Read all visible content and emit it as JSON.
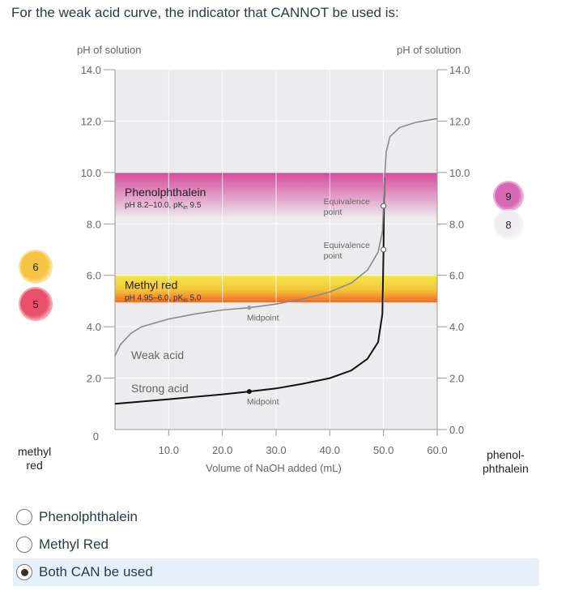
{
  "question": "For the weak acid curve, the indicator that CANNOT be used is:",
  "side_labels": {
    "left": [
      "methyl",
      "red"
    ],
    "right": [
      "phenol-",
      "phthalein"
    ]
  },
  "beakers": {
    "left": [
      {
        "label": "6",
        "color": "#f6c443"
      },
      {
        "label": "5",
        "color": "#e9506a"
      }
    ],
    "right": [
      {
        "label": "9",
        "color": "#d769b4"
      },
      {
        "label": "8",
        "color": "#f1eef2"
      }
    ]
  },
  "chart_data": {
    "type": "line",
    "xlabel": "Volume of NaOH added (mL)",
    "ylabel_left": "pH of solution",
    "ylabel_right": "pH of solution",
    "xlim": [
      0,
      60
    ],
    "ylim": [
      0,
      14
    ],
    "grid": true,
    "x_ticks": [
      "10.0",
      "20.0",
      "30.0",
      "40.0",
      "50.0",
      "60.0"
    ],
    "y_ticks_left": [
      "0",
      "2.0",
      "4.0",
      "6.0",
      "8.0",
      "10.0",
      "12.0",
      "14.0"
    ],
    "y_ticks_right": [
      "0.0",
      "2.0",
      "4.0",
      "6.0",
      "8.0",
      "10.0",
      "12.0",
      "14.0"
    ],
    "bands": [
      {
        "name": "Phenolphthalein",
        "detail": "pH 8.2–10.0, pK",
        "sub": "in",
        "pk": " 9.5",
        "range": [
          8.2,
          10.0
        ],
        "color": "#d44a9c"
      },
      {
        "name": "Methyl red",
        "detail": "pH 4.95–6.0, pK",
        "sub": "in",
        "pk": " 5.0",
        "range": [
          4.95,
          6.0
        ],
        "color": "#f2e84a",
        "color2": "#f06a2a"
      }
    ],
    "series": [
      {
        "name": "Weak acid",
        "color": "#8a8a8a",
        "points": [
          [
            0,
            2.87
          ],
          [
            1,
            3.3
          ],
          [
            3,
            3.75
          ],
          [
            5,
            4.0
          ],
          [
            10,
            4.3
          ],
          [
            15,
            4.5
          ],
          [
            20,
            4.65
          ],
          [
            25,
            4.74
          ],
          [
            30,
            4.88
          ],
          [
            35,
            5.08
          ],
          [
            40,
            5.35
          ],
          [
            44,
            5.7
          ],
          [
            47,
            6.2
          ],
          [
            49,
            6.9
          ],
          [
            49.8,
            7.7
          ],
          [
            50,
            8.7
          ],
          [
            50.2,
            9.8
          ],
          [
            50.5,
            10.8
          ],
          [
            51.2,
            11.4
          ],
          [
            53,
            11.75
          ],
          [
            56,
            11.95
          ],
          [
            60,
            12.1
          ]
        ]
      },
      {
        "name": "Strong acid",
        "color": "#111111",
        "points": [
          [
            0,
            1.0
          ],
          [
            10,
            1.18
          ],
          [
            20,
            1.37
          ],
          [
            25,
            1.48
          ],
          [
            30,
            1.6
          ],
          [
            35,
            1.78
          ],
          [
            40,
            2.0
          ],
          [
            44,
            2.3
          ],
          [
            47,
            2.75
          ],
          [
            49,
            3.4
          ],
          [
            49.8,
            4.5
          ],
          [
            50,
            7.0
          ],
          [
            50.1,
            9.0
          ],
          [
            50.2,
            9.8
          ]
        ]
      }
    ],
    "annotations": [
      {
        "text": "Midpoint",
        "x": 25,
        "y": 4.74,
        "series": "Weak acid"
      },
      {
        "text": "Midpoint",
        "x": 25,
        "y": 1.48,
        "series": "Strong acid"
      },
      {
        "text": [
          "Equivalence",
          "point"
        ],
        "x": 50,
        "y": 8.7,
        "series": "Weak acid"
      },
      {
        "text": [
          "Equivalence",
          "point"
        ],
        "x": 50,
        "y": 7.0,
        "series": "Strong acid"
      }
    ]
  },
  "options": [
    {
      "label": "Phenolphthalein",
      "selected": false
    },
    {
      "label": "Methyl Red",
      "selected": false
    },
    {
      "label": "Both CAN be used",
      "selected": true
    }
  ]
}
